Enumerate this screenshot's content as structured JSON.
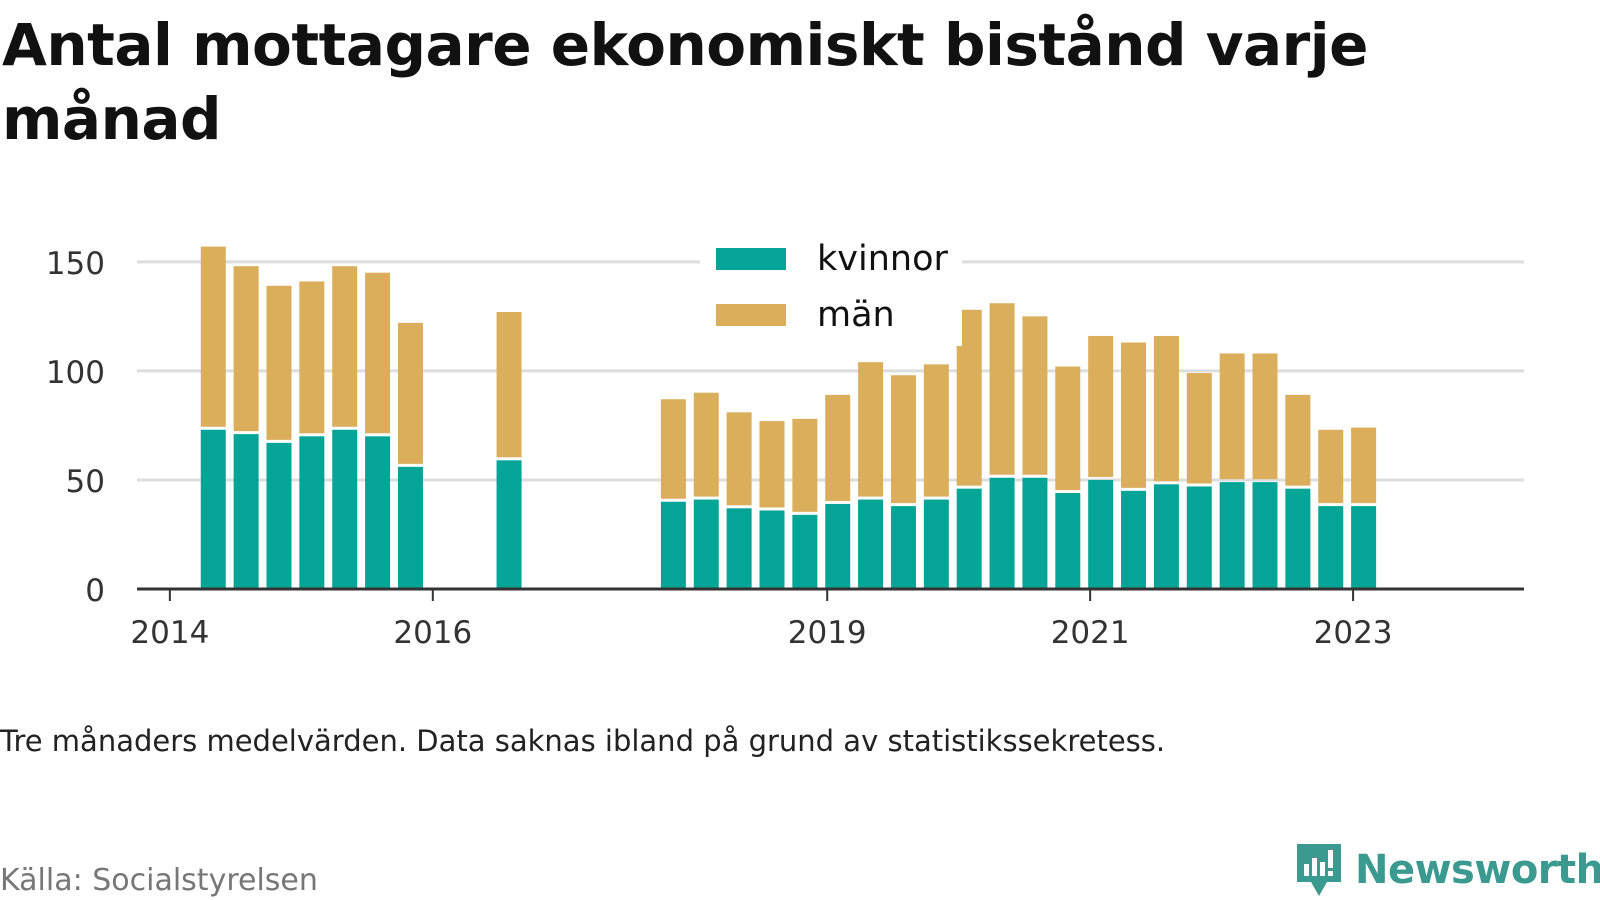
{
  "title": "Antal mottagare ekonomiskt bistånd varje månad",
  "note": "Tre månaders medelvärden. Data saknas ibland på grund av statistikssekretess.",
  "source": "Källa: Socialstyrelsen",
  "brand": {
    "name": "Newsworthy",
    "color": "#3a9a8f"
  },
  "chart_data": {
    "type": "bar",
    "stacked": true,
    "grid": true,
    "legend_position": "top-center",
    "ylim": [
      0,
      160
    ],
    "yticks": [
      0,
      50,
      100,
      150
    ],
    "xlim": [
      2013.75,
      2024.3
    ],
    "xticks": [
      2014,
      2016,
      2019,
      2021,
      2023
    ],
    "x": [
      2014.33,
      2014.58,
      2014.83,
      2015.08,
      2015.33,
      2015.58,
      2015.83,
      2016.58,
      2017.83,
      2018.08,
      2018.33,
      2018.58,
      2018.83,
      2019.08,
      2019.33,
      2019.58,
      2019.83,
      2020.08,
      2020.33,
      2020.58,
      2020.83,
      2021.08,
      2021.33,
      2021.58,
      2021.83,
      2022.08,
      2022.33,
      2022.58,
      2022.83,
      2023.08
    ],
    "series": [
      {
        "name": "kvinnor",
        "color": "#04a597",
        "values": [
          73,
          71,
          67,
          70,
          73,
          70,
          56,
          59,
          40,
          41,
          37,
          36,
          34,
          39,
          41,
          38,
          41,
          46,
          51,
          51,
          44,
          50,
          45,
          48,
          47,
          49,
          49,
          46,
          38,
          38
        ]
      },
      {
        "name": "män",
        "color": "#dbae5c",
        "values": [
          84,
          77,
          72,
          71,
          75,
          75,
          66,
          68,
          47,
          49,
          44,
          41,
          44,
          50,
          63,
          60,
          62,
          82,
          80,
          74,
          58,
          66,
          68,
          68,
          52,
          59,
          59,
          43,
          35,
          36
        ]
      }
    ]
  }
}
